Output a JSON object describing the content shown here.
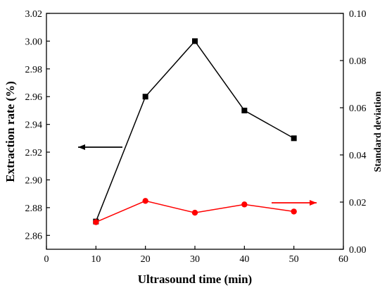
{
  "chart_data": {
    "type": "line",
    "x": [
      10,
      20,
      30,
      40,
      50
    ],
    "xlabel": "Ultrasound time (min)",
    "xlim": [
      0,
      60
    ],
    "xticks": [
      "0",
      "10",
      "20",
      "30",
      "40",
      "50",
      "60"
    ],
    "ylabel": "Extraction rate (%)",
    "ylim": [
      2.85,
      3.02
    ],
    "yticks": [
      "2.86",
      "2.88",
      "2.90",
      "2.92",
      "2.94",
      "2.96",
      "2.98",
      "3.00",
      "3.02"
    ],
    "y2label": "Standard deviation",
    "y2lim": [
      0,
      0.1
    ],
    "y2ticks": [
      "0.00",
      "0.02",
      "0.04",
      "0.06",
      "0.08",
      "0.10"
    ],
    "grid": false,
    "series": [
      {
        "values": [
          2.87,
          2.96,
          3.0,
          2.95,
          2.93
        ],
        "axis": "left",
        "color": "#000000",
        "marker": "square",
        "indicator_arrow": "left"
      },
      {
        "values": [
          0.0115,
          0.0205,
          0.0155,
          0.019,
          0.016
        ],
        "axis": "right",
        "color": "#ff0000",
        "marker": "circle",
        "indicator_arrow": "right"
      }
    ]
  }
}
